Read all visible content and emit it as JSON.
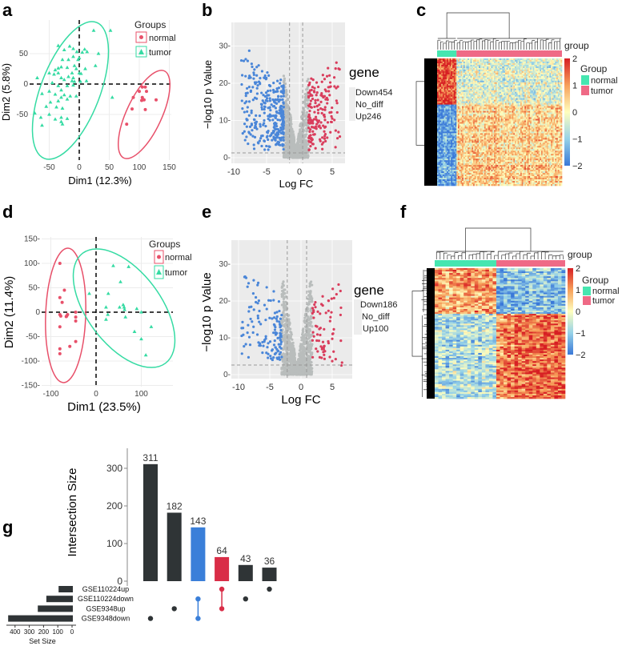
{
  "panel_labels": {
    "a": "a",
    "b": "b",
    "c": "c",
    "d": "d",
    "e": "e",
    "f": "f",
    "g": "g"
  },
  "chart_data": [
    {
      "id": "a",
      "type": "scatter",
      "xlabel": "Dim1 (12.3%)",
      "ylabel": "Dim2 (5.8%)",
      "xlim": [
        -78,
        155
      ],
      "ylim": [
        -90,
        105
      ],
      "xticks": [
        "-50",
        "0",
        "50",
        "100",
        "150"
      ],
      "xtick_values": [
        -50,
        0,
        50,
        100,
        150
      ],
      "yticks": [
        "-50",
        "0",
        "50"
      ],
      "ytick_values": [
        -50,
        0,
        50
      ],
      "legend_title": "Groups",
      "legend_position": "top-right",
      "groups": [
        {
          "name": "normal",
          "color": "#e8506a",
          "marker": "circle",
          "points": [
            [
              105,
              -5
            ],
            [
              110,
              -5
            ],
            [
              100,
              -12
            ],
            [
              112,
              -12
            ],
            [
              90,
              -22
            ],
            [
              105,
              -22
            ],
            [
              106,
              -25
            ],
            [
              104,
              -27
            ],
            [
              108,
              -26
            ],
            [
              128,
              -26
            ],
            [
              88,
              -41
            ],
            [
              110,
              -42
            ],
            [
              79,
              -66
            ]
          ]
        },
        {
          "name": "tumor",
          "color": "#35dba3",
          "marker": "triangle",
          "points": [
            [
              24,
              88
            ],
            [
              52,
              88
            ],
            [
              -35,
              63
            ],
            [
              -16,
              62
            ],
            [
              -10,
              58
            ],
            [
              9,
              57
            ],
            [
              -25,
              56
            ],
            [
              -4,
              53
            ],
            [
              5,
              52
            ],
            [
              13,
              53
            ],
            [
              32,
              50
            ],
            [
              -10,
              45
            ],
            [
              0,
              43
            ],
            [
              -2,
              40
            ],
            [
              -28,
              40
            ],
            [
              -18,
              40
            ],
            [
              -8,
              30
            ],
            [
              -30,
              28
            ],
            [
              -35,
              26
            ],
            [
              -20,
              27
            ],
            [
              -5,
              25
            ],
            [
              -40,
              23
            ],
            [
              10,
              25
            ],
            [
              27,
              30
            ],
            [
              0,
              18
            ],
            [
              3,
              17
            ],
            [
              -12,
              18
            ],
            [
              -50,
              18
            ],
            [
              -42,
              16
            ],
            [
              -35,
              18
            ],
            [
              -30,
              10
            ],
            [
              -18,
              12
            ],
            [
              -10,
              10
            ],
            [
              -25,
              7
            ],
            [
              -12,
              5
            ],
            [
              -8,
              4
            ],
            [
              2,
              4
            ],
            [
              12,
              5
            ],
            [
              -70,
              10
            ],
            [
              -45,
              2
            ],
            [
              -35,
              -3
            ],
            [
              -20,
              -3
            ],
            [
              -10,
              -2
            ],
            [
              -30,
              -10
            ],
            [
              -50,
              -12
            ],
            [
              -62,
              -16
            ],
            [
              -40,
              -17
            ],
            [
              -25,
              -18
            ],
            [
              -15,
              -20
            ],
            [
              -5,
              -20
            ],
            [
              55,
              -22
            ],
            [
              -48,
              -30
            ],
            [
              -35,
              -28
            ],
            [
              -30,
              -22
            ],
            [
              -20,
              -25
            ],
            [
              -55,
              -37
            ],
            [
              -38,
              -38
            ],
            [
              -28,
              -40
            ],
            [
              -74,
              -48
            ],
            [
              -50,
              -50
            ],
            [
              -30,
              -55
            ],
            [
              -20,
              -57
            ],
            [
              -64,
              -55
            ],
            [
              -40,
              -58
            ],
            [
              -30,
              -62
            ],
            [
              -62,
              -68
            ],
            [
              -28,
              -66
            ]
          ]
        }
      ]
    },
    {
      "id": "b",
      "type": "scatter",
      "subtype": "volcano",
      "xlabel": "Log FC",
      "ylabel": "−log10 p Value",
      "xlim": [
        -10.5,
        7.5
      ],
      "ylim": [
        -1,
        37
      ],
      "xticks": [
        "-10",
        "-5",
        "0",
        "5"
      ],
      "xtick_values": [
        -10,
        -5,
        0,
        5
      ],
      "yticks": [
        "0-",
        "10-",
        "20-",
        "30-"
      ],
      "ytick_values": [
        0,
        10,
        20,
        30
      ],
      "logfc_thresholds": [
        -1.5,
        0.5
      ],
      "p_threshold": 1.3,
      "legend_title": "gene",
      "legend_position": "right",
      "legend": [
        "Down454",
        "No_diff",
        "Up246"
      ],
      "counts": {
        "down": 454,
        "up": 246
      },
      "colors": {
        "down": "#4a86d8",
        "no_diff": "#b9bdbc",
        "up": "#d93d5c"
      }
    },
    {
      "id": "c",
      "type": "heatmap",
      "annotation_title": "group",
      "legend_title": "Group",
      "groups": [
        {
          "name": "normal",
          "color": "#46e6b0",
          "fraction": 0.15
        },
        {
          "name": "tumor",
          "color": "#ef6a86",
          "fraction": 0.85
        }
      ],
      "colorbar_ticks": [
        "2",
        "1",
        "0",
        "−1",
        "−2"
      ],
      "colorbar_values": [
        2,
        1,
        0,
        -1,
        -2
      ],
      "pattern": {
        "normal": {
          "top": 1.6,
          "bottom": -1.5
        },
        "tumor": {
          "top": -0.3,
          "bottom": 0.5
        },
        "top_fraction": 0.36
      }
    },
    {
      "id": "d",
      "type": "scatter",
      "xlabel": "Dim1 (23.5%)",
      "ylabel": "Dim2 (11.4%)",
      "xlim": [
        -120,
        160
      ],
      "ylim": [
        -155,
        155
      ],
      "xticks": [
        "-100",
        "0",
        "100"
      ],
      "xtick_values": [
        -100,
        0,
        100
      ],
      "yticks": [
        "150-",
        "100-",
        "50-",
        "0",
        "-50-",
        "-100-",
        "-150-"
      ],
      "ytick_values": [
        150,
        100,
        50,
        0,
        -50,
        -100,
        -150
      ],
      "legend_title": "Groups",
      "legend_position": "top-right",
      "groups": [
        {
          "name": "normal",
          "color": "#e8506a",
          "marker": "circle",
          "points": [
            [
              -80,
              100
            ],
            [
              -70,
              45
            ],
            [
              -80,
              30
            ],
            [
              -75,
              20
            ],
            [
              -80,
              -5
            ],
            [
              -78,
              -8
            ],
            [
              -65,
              -8
            ],
            [
              -63,
              -5
            ],
            [
              -66,
              -9
            ],
            [
              -45,
              0
            ],
            [
              -45,
              -10
            ],
            [
              -45,
              -18
            ],
            [
              -80,
              -30
            ],
            [
              -45,
              -60
            ],
            [
              -58,
              -70
            ],
            [
              -80,
              -75
            ],
            [
              -80,
              -85
            ]
          ]
        },
        {
          "name": "tumor",
          "color": "#35dba3",
          "marker": "triangle",
          "points": [
            [
              -15,
              38
            ],
            [
              38,
              95
            ],
            [
              72,
              93
            ],
            [
              54,
              62
            ],
            [
              27,
              38
            ],
            [
              22,
              10
            ],
            [
              26,
              -5
            ],
            [
              22,
              -15
            ],
            [
              52,
              10
            ],
            [
              60,
              15
            ],
            [
              62,
              10
            ],
            [
              63,
              5
            ],
            [
              65,
              -10
            ],
            [
              90,
              7
            ],
            [
              100,
              0
            ],
            [
              122,
              -30
            ],
            [
              85,
              -40
            ],
            [
              100,
              -55
            ],
            [
              110,
              -88
            ]
          ]
        }
      ]
    },
    {
      "id": "e",
      "type": "scatter",
      "subtype": "volcano",
      "xlabel": "Log FC",
      "ylabel": "−log10 p Value",
      "xlim": [
        -10.5,
        8
      ],
      "ylim": [
        -1,
        37
      ],
      "xticks": [
        "-10",
        "-5",
        "0",
        "5"
      ],
      "xtick_values": [
        -10,
        -5,
        0,
        5
      ],
      "yticks": [
        "0-",
        "10-",
        "20-",
        "30-"
      ],
      "ytick_values": [
        0,
        10,
        20,
        30
      ],
      "logfc_thresholds": [
        -2.2,
        0.9
      ],
      "p_threshold": 2.6,
      "legend_title": "gene",
      "legend_position": "right",
      "legend": [
        "Down186",
        "No_diff",
        "Up100"
      ],
      "counts": {
        "down": 186,
        "up": 100
      },
      "colors": {
        "down": "#4a86d8",
        "no_diff": "#b9bdbc",
        "up": "#d93d5c"
      }
    },
    {
      "id": "f",
      "type": "heatmap",
      "annotation_title": "group",
      "legend_title": "Group",
      "groups": [
        {
          "name": "normal",
          "color": "#46e6b0",
          "fraction": 0.485
        },
        {
          "name": "tumor",
          "color": "#ef6a86",
          "fraction": 0.515
        }
      ],
      "colorbar_ticks": [
        "2",
        "1",
        "0",
        "−1",
        "−2"
      ],
      "colorbar_values": [
        2,
        1,
        0,
        -1,
        -2
      ],
      "pattern": {
        "normal": {
          "top": 0.9,
          "bottom": -0.8
        },
        "tumor": {
          "top": -1.2,
          "bottom": 1.3
        },
        "top_fraction": 0.35
      }
    },
    {
      "id": "g",
      "type": "bar",
      "subtype": "upset",
      "ylabel": "Intersection Size",
      "ylim": [
        0,
        330
      ],
      "yticks": [
        "0",
        "100",
        "200",
        "300"
      ],
      "ytick_values": [
        0,
        100,
        200,
        300
      ],
      "sets": [
        {
          "name": "GSE110224up",
          "size": 100
        },
        {
          "name": "GSE110224down",
          "size": 186
        },
        {
          "name": "GSE9348up",
          "size": 246
        },
        {
          "name": "GSE9348down",
          "size": 454
        }
      ],
      "set_size_label": "Set Size",
      "set_size_ticks": [
        "400",
        "300",
        "200",
        "100",
        "0"
      ],
      "set_size_tick_values": [
        400,
        300,
        200,
        100,
        0
      ],
      "intersections": [
        {
          "value": 311,
          "label": "311",
          "sets": [
            "GSE9348down"
          ],
          "color": "#2f3436"
        },
        {
          "value": 182,
          "label": "182",
          "sets": [
            "GSE9348up"
          ],
          "color": "#2f3436"
        },
        {
          "value": 143,
          "label": "143",
          "sets": [
            "GSE110224down",
            "GSE9348down"
          ],
          "color": "#3a7fd9"
        },
        {
          "value": 64,
          "label": "64",
          "sets": [
            "GSE110224up",
            "GSE9348up"
          ],
          "color": "#d92d47"
        },
        {
          "value": 43,
          "label": "43",
          "sets": [
            "GSE110224down"
          ],
          "color": "#2f3436"
        },
        {
          "value": 36,
          "label": "36",
          "sets": [
            "GSE110224up"
          ],
          "color": "#2f3436"
        }
      ]
    }
  ]
}
